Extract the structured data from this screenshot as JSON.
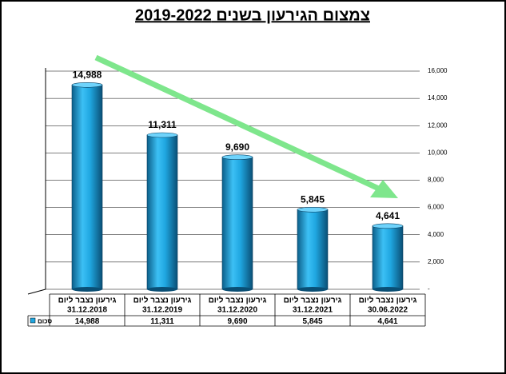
{
  "chart_data": {
    "type": "bar",
    "title": "צמצום הגירעון בשנים 2019-2022",
    "categories": [
      [
        "גירעון נצבר ליום",
        "31.12.2018"
      ],
      [
        "גירעון נצבר ליום",
        "31.12.2019"
      ],
      [
        "גירעון נצבר ליום",
        "31.12.2020"
      ],
      [
        "גירעון נצבר ליום",
        "31.12.2021"
      ],
      [
        "גירעון נצבר ליום",
        "30.06.2022"
      ]
    ],
    "series": [
      {
        "name": "סכום",
        "color": "#1fa6e0",
        "values": [
          14988,
          11311,
          9690,
          5845,
          4641
        ],
        "value_labels": [
          "14,988",
          "11,311",
          "9,690",
          "5,845",
          "4,641"
        ]
      }
    ],
    "ylim": [
      0,
      16000
    ],
    "yticks": [
      {
        "value": 0,
        "label": "-"
      },
      {
        "value": 2000,
        "label": "2,000"
      },
      {
        "value": 4000,
        "label": "4,000"
      },
      {
        "value": 6000,
        "label": "6,000"
      },
      {
        "value": 8000,
        "label": "8,000"
      },
      {
        "value": 10000,
        "label": "10,000"
      },
      {
        "value": 12000,
        "label": "12,000"
      },
      {
        "value": 14000,
        "label": "14,000"
      },
      {
        "value": 16000,
        "label": "16,000"
      }
    ],
    "grid": true
  }
}
